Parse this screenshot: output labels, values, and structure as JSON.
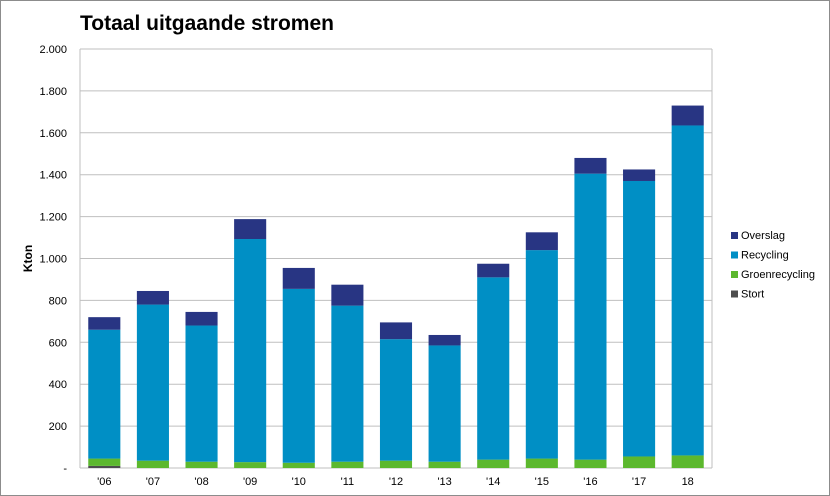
{
  "chart_data": {
    "type": "bar",
    "stacked": true,
    "title": "Totaal uitgaande stromen",
    "ylabel": "Kton",
    "xlabel": "",
    "ylim": [
      0,
      2000
    ],
    "y_ticks": [
      0,
      200,
      400,
      600,
      800,
      1000,
      1200,
      1400,
      1600,
      1800,
      2000
    ],
    "y_tick_labels": [
      "-",
      "200",
      "400",
      "600",
      "800",
      "1.000",
      "1.200",
      "1.400",
      "1.600",
      "1.800",
      "2.000"
    ],
    "grid": true,
    "legend_position": "right",
    "categories": [
      "'06",
      "'07",
      "'08",
      "'09",
      "'10",
      "'11",
      "'12",
      "'13",
      "'14",
      "'15",
      "'16",
      "'17",
      "18"
    ],
    "series": [
      {
        "name": "Stort",
        "color": "#4d4d4d",
        "values": [
          10,
          0,
          0,
          0,
          0,
          0,
          0,
          0,
          0,
          0,
          0,
          0,
          0
        ]
      },
      {
        "name": "Groenrecycling",
        "color": "#5cb82e",
        "values": [
          35,
          35,
          30,
          28,
          25,
          30,
          35,
          30,
          40,
          45,
          40,
          55,
          60
        ]
      },
      {
        "name": "Recycling",
        "color": "#008fc5",
        "values": [
          615,
          745,
          650,
          1065,
          830,
          745,
          580,
          555,
          870,
          995,
          1365,
          1315,
          1575
        ]
      },
      {
        "name": "Overslag",
        "color": "#283583",
        "values": [
          60,
          65,
          65,
          95,
          100,
          100,
          80,
          50,
          65,
          85,
          75,
          55,
          95
        ]
      }
    ]
  }
}
